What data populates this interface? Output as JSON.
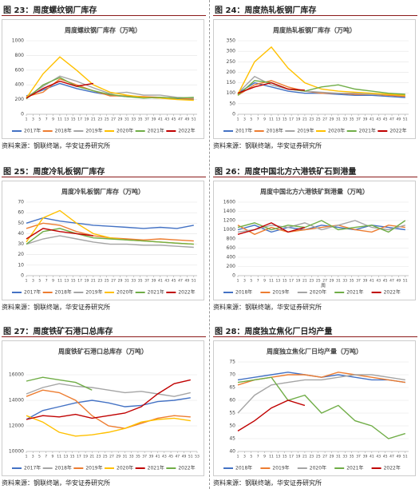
{
  "chart_data": [
    {
      "type": "line",
      "caption": "图 23：周度螺纹钢厂库存",
      "title": "周度螺纹钢厂库存（万吨）",
      "source": "资料来源：钢联终端，华安证券研究所",
      "x": [
        1,
        6,
        11,
        16,
        21,
        26,
        31,
        36,
        41,
        46,
        51
      ],
      "xlim": [
        1,
        52
      ],
      "xticks": [
        1,
        3,
        5,
        7,
        9,
        11,
        13,
        15,
        17,
        19,
        21,
        23,
        25,
        27,
        29,
        31,
        33,
        35,
        37,
        39,
        41,
        43,
        45,
        47,
        49,
        51
      ],
      "ylim": [
        0,
        1000
      ],
      "yticks": [
        0,
        200,
        400,
        600,
        800,
        1000
      ],
      "series": [
        {
          "name": "2017年",
          "color": "#4472c4",
          "values": [
            250,
            330,
            420,
            350,
            300,
            260,
            240,
            230,
            220,
            210,
            200
          ]
        },
        {
          "name": "2018年",
          "color": "#ed7d31",
          "values": [
            240,
            300,
            480,
            400,
            320,
            250,
            250,
            240,
            230,
            220,
            210
          ]
        },
        {
          "name": "2019年",
          "color": "#a5a5a5",
          "values": [
            230,
            380,
            520,
            450,
            360,
            280,
            300,
            260,
            260,
            230,
            220
          ]
        },
        {
          "name": "2020年",
          "color": "#ffc000",
          "values": [
            220,
            550,
            780,
            600,
            400,
            300,
            260,
            230,
            220,
            200,
            190
          ]
        },
        {
          "name": "2021年",
          "color": "#70ad47",
          "values": [
            210,
            400,
            500,
            380,
            320,
            270,
            240,
            220,
            230,
            220,
            230
          ]
        },
        {
          "name": "2022年",
          "color": "#c00000",
          "values": [
            220,
            350,
            450,
            380,
            420,
            null,
            null,
            null,
            null,
            null,
            null
          ]
        }
      ]
    },
    {
      "type": "line",
      "caption": "图 24：周度热轧板钢厂库存",
      "title": "周度热轧板钢厂库存（万吨）",
      "source": "资料来源：钢联终端，华安证券研究所",
      "x": [
        1,
        6,
        11,
        16,
        21,
        26,
        31,
        36,
        41,
        46,
        51
      ],
      "xlim": [
        1,
        52
      ],
      "xticks": [
        1,
        3,
        5,
        7,
        9,
        11,
        13,
        15,
        17,
        19,
        21,
        23,
        25,
        27,
        29,
        31,
        33,
        35,
        37,
        39,
        41,
        43,
        45,
        47,
        49,
        51
      ],
      "ylim": [
        0,
        350
      ],
      "yticks": [
        0,
        50,
        100,
        150,
        200,
        250,
        300,
        350
      ],
      "series": [
        {
          "name": "2017年",
          "color": "#4472c4",
          "values": [
            100,
            150,
            130,
            110,
            100,
            100,
            95,
            90,
            90,
            85,
            80
          ]
        },
        {
          "name": "2018年",
          "color": "#ed7d31",
          "values": [
            90,
            140,
            160,
            130,
            110,
            100,
            100,
            95,
            95,
            90,
            85
          ]
        },
        {
          "name": "2019年",
          "color": "#a5a5a5",
          "values": [
            100,
            180,
            140,
            120,
            110,
            105,
            100,
            100,
            95,
            95,
            90
          ]
        },
        {
          "name": "2020年",
          "color": "#ffc000",
          "values": [
            95,
            250,
            320,
            220,
            150,
            120,
            110,
            105,
            100,
            95,
            90
          ]
        },
        {
          "name": "2021年",
          "color": "#70ad47",
          "values": [
            90,
            160,
            150,
            120,
            110,
            130,
            140,
            120,
            110,
            100,
            95
          ]
        },
        {
          "name": "2022年",
          "color": "#c00000",
          "values": [
            100,
            130,
            150,
            120,
            115,
            null,
            null,
            null,
            null,
            null,
            null
          ]
        }
      ]
    },
    {
      "type": "line",
      "caption": "图 25：周度冷轧板钢厂库存",
      "title": "周度冷轧板钢厂库存（万吨）",
      "source": "资料来源：钢联终端，华安证券研究所",
      "x": [
        1,
        6,
        11,
        16,
        21,
        26,
        31,
        36,
        41,
        46,
        51
      ],
      "xlim": [
        1,
        52
      ],
      "xticks": [
        1,
        3,
        5,
        7,
        9,
        11,
        13,
        15,
        17,
        19,
        21,
        23,
        25,
        27,
        29,
        31,
        33,
        35,
        37,
        39,
        41,
        43,
        45,
        47,
        49,
        51
      ],
      "ylim": [
        0,
        70
      ],
      "yticks": [
        0,
        10,
        20,
        30,
        40,
        50,
        60,
        70
      ],
      "series": [
        {
          "name": "2017年",
          "color": "#4472c4",
          "values": [
            50,
            55,
            52,
            50,
            48,
            47,
            46,
            45,
            46,
            45,
            48
          ]
        },
        {
          "name": "2018年",
          "color": "#ed7d31",
          "values": [
            45,
            50,
            48,
            42,
            38,
            36,
            35,
            34,
            35,
            34,
            33
          ]
        },
        {
          "name": "2019年",
          "color": "#a5a5a5",
          "values": [
            30,
            35,
            38,
            35,
            32,
            30,
            30,
            29,
            29,
            28,
            27
          ]
        },
        {
          "name": "2020年",
          "color": "#ffc000",
          "values": [
            32,
            55,
            62,
            50,
            40,
            36,
            34,
            33,
            32,
            31,
            30
          ]
        },
        {
          "name": "2021年",
          "color": "#70ad47",
          "values": [
            30,
            42,
            45,
            40,
            36,
            35,
            34,
            33,
            32,
            31,
            30
          ]
        },
        {
          "name": "2022年",
          "color": "#c00000",
          "values": [
            35,
            45,
            42,
            40,
            38,
            null,
            null,
            null,
            null,
            null,
            null
          ]
        }
      ]
    },
    {
      "type": "line",
      "caption": "图 26：周度中国北方六港铁矿石到港量",
      "title": "周度中国北方六港铁矿到港量（万吨）",
      "source": "资料来源：钢联终端，华安证券研究所",
      "xlabel": "周",
      "x": [
        1,
        6,
        11,
        16,
        21,
        26,
        31,
        36,
        41,
        46,
        51
      ],
      "xlim": [
        1,
        52
      ],
      "xticks": [
        1,
        3,
        5,
        7,
        9,
        11,
        13,
        15,
        17,
        19,
        21,
        23,
        25,
        27,
        29,
        31,
        33,
        35,
        37,
        39,
        41,
        43,
        45,
        47,
        49,
        51
      ],
      "ylim": [
        0,
        1600
      ],
      "yticks": [
        0,
        200,
        400,
        600,
        800,
        1000,
        1200,
        1400,
        1600
      ],
      "series": [
        {
          "name": "2018年",
          "color": "#4472c4",
          "values": [
            1000,
            1100,
            950,
            1050,
            1000,
            1100,
            1050,
            1000,
            1100,
            1050,
            1000
          ]
        },
        {
          "name": "2019年",
          "color": "#ed7d31",
          "values": [
            1100,
            900,
            1050,
            950,
            1000,
            1050,
            1100,
            1000,
            950,
            1100,
            1050
          ]
        },
        {
          "name": "2020年",
          "color": "#a5a5a5",
          "values": [
            950,
            1000,
            1100,
            1050,
            1150,
            1000,
            1100,
            1200,
            1050,
            1000,
            1100
          ]
        },
        {
          "name": "2021年",
          "color": "#70ad47",
          "values": [
            1050,
            1150,
            1000,
            1100,
            1050,
            1200,
            1000,
            1050,
            1100,
            950,
            1200
          ]
        },
        {
          "name": "2022年",
          "color": "#c00000",
          "values": [
            900,
            1000,
            1150,
            950,
            1050,
            null,
            null,
            null,
            null,
            null,
            null
          ]
        }
      ]
    },
    {
      "type": "line",
      "caption": "图 27：周度铁矿石港口总库存",
      "title": "周度铁矿石港口总库存（万吨）",
      "source": "资料来源：钢联终端，华安证券研究所",
      "x": [
        1,
        6,
        11,
        16,
        21,
        26,
        31,
        36,
        41,
        46,
        51
      ],
      "xlim": [
        1,
        53
      ],
      "xticks": [
        1,
        3,
        5,
        7,
        9,
        11,
        13,
        15,
        17,
        19,
        21,
        23,
        25,
        27,
        29,
        31,
        33,
        35,
        37,
        39,
        41,
        43,
        45,
        47,
        49,
        51,
        53
      ],
      "ylim": [
        10000,
        17000
      ],
      "yticks": [
        10000,
        12000,
        14000,
        16000
      ],
      "series": [
        {
          "name": "2017年",
          "color": "#4472c4",
          "values": [
            12500,
            13200,
            13500,
            13800,
            14000,
            13800,
            13500,
            13600,
            13900,
            14000,
            14200
          ]
        },
        {
          "name": "2018年",
          "color": "#a5a5a5",
          "values": [
            14500,
            15000,
            15300,
            15100,
            15000,
            14800,
            14600,
            14700,
            14500,
            14300,
            14600
          ]
        },
        {
          "name": "2019年",
          "color": "#ed7d31",
          "values": [
            14300,
            14800,
            14600,
            14000,
            12800,
            12000,
            11800,
            12200,
            12600,
            12800,
            12700
          ]
        },
        {
          "name": "2020年",
          "color": "#ffc000",
          "values": [
            12800,
            12300,
            11500,
            11200,
            11300,
            11500,
            11800,
            12300,
            12500,
            12600,
            12400
          ]
        },
        {
          "name": "2021年",
          "color": "#c00000",
          "values": [
            12500,
            12800,
            12700,
            12900,
            12600,
            12800,
            13000,
            13500,
            14500,
            15300,
            15600
          ]
        },
        {
          "name": "2022年",
          "color": "#70ad47",
          "values": [
            15500,
            15800,
            15600,
            15400,
            14800,
            null,
            null,
            null,
            null,
            null,
            null
          ]
        }
      ]
    },
    {
      "type": "line",
      "caption": "图 28：周度独立焦化厂日均产量",
      "title": "周度独立焦化厂日均产量（万吨）",
      "source": "资料来源：钢联终端，华安证券研究所",
      "x": [
        1,
        6,
        11,
        16,
        21,
        26,
        31,
        36,
        41,
        46,
        51
      ],
      "xlim": [
        1,
        52
      ],
      "xticks": [
        1,
        3,
        5,
        7,
        9,
        11,
        13,
        15,
        17,
        19,
        21,
        23,
        25,
        27,
        29,
        31,
        33,
        35,
        37,
        39,
        41,
        43,
        45,
        47,
        49,
        51
      ],
      "ylim": [
        40,
        75
      ],
      "yticks": [
        40,
        45,
        50,
        55,
        60,
        65,
        70,
        75
      ],
      "series": [
        {
          "name": "2018年",
          "color": "#4472c4",
          "values": [
            68,
            69,
            70,
            71,
            70,
            69,
            70,
            69,
            68,
            68,
            67
          ]
        },
        {
          "name": "2019年",
          "color": "#ed7d31",
          "values": [
            66,
            68,
            69,
            70,
            70,
            69,
            71,
            70,
            69,
            68,
            67
          ]
        },
        {
          "name": "2020年",
          "color": "#a5a5a5",
          "values": [
            55,
            62,
            66,
            67,
            68,
            68,
            69,
            70,
            70,
            69,
            68
          ]
        },
        {
          "name": "2021年",
          "color": "#70ad47",
          "values": [
            67,
            68,
            69,
            60,
            62,
            55,
            58,
            52,
            50,
            45,
            47
          ]
        },
        {
          "name": "2022年",
          "color": "#c00000",
          "values": [
            48,
            52,
            57,
            60,
            58,
            null,
            null,
            null,
            null,
            null,
            null
          ]
        }
      ]
    }
  ]
}
